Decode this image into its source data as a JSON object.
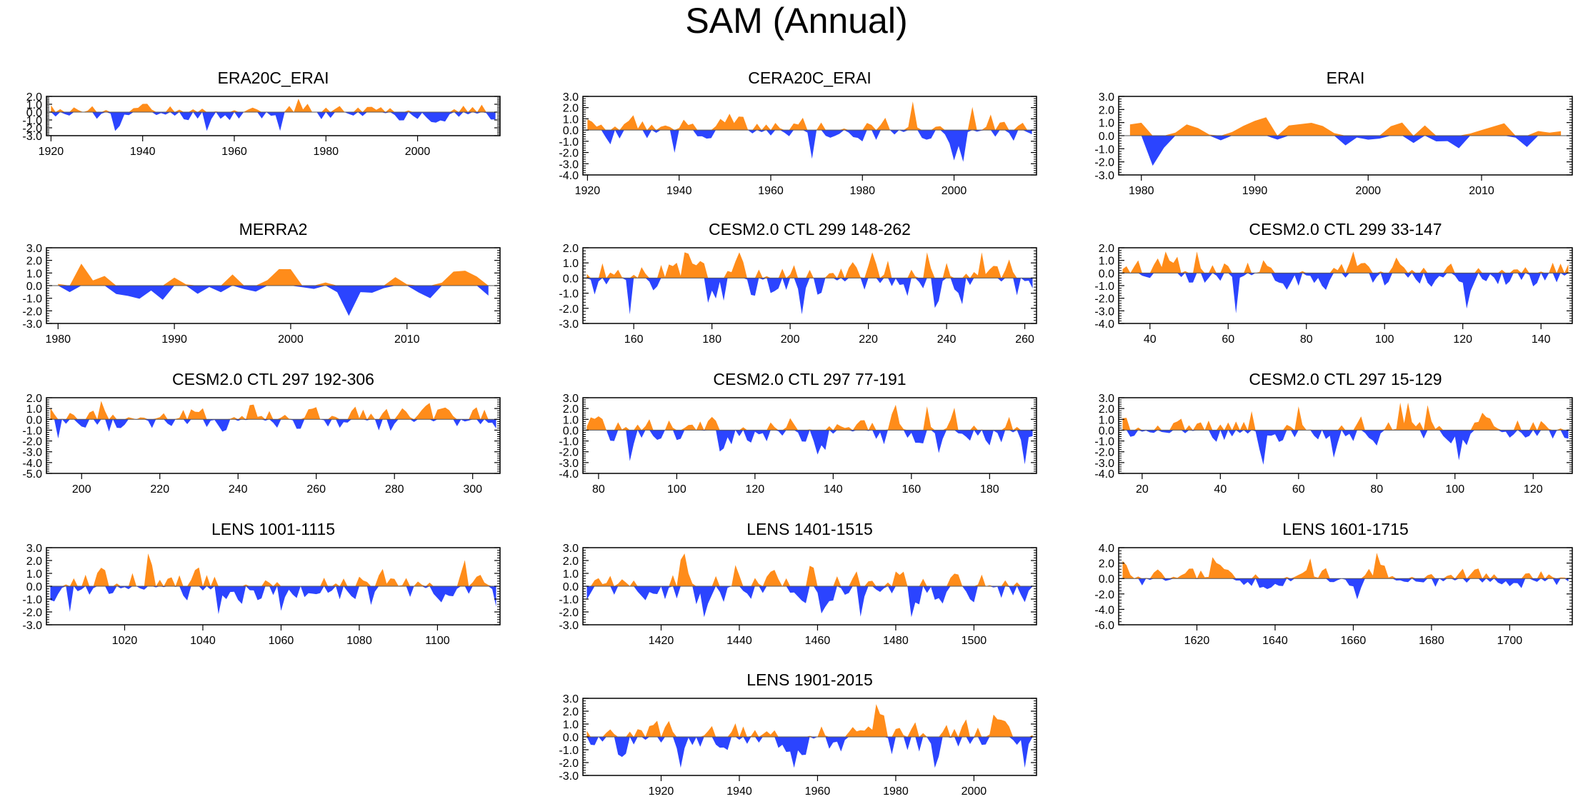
{
  "title": "SAM (Annual)",
  "colors": {
    "positive": "#ff8c1a",
    "negative": "#2b44ff",
    "axis": "#000000",
    "background": "#ffffff"
  },
  "chart_data": [
    {
      "type": "area",
      "title": "ERA20C_ERAI",
      "xlim": [
        1919,
        2018
      ],
      "ylim": [
        -3.0,
        2.0
      ],
      "yticks": [
        "2.0",
        "1.0",
        "0.0",
        "-1.0",
        "-2.0",
        "-3.0"
      ],
      "xticks": [
        1920,
        1940,
        1960,
        1980,
        2000
      ],
      "zero": 0.0,
      "seed": 11
    },
    {
      "type": "area",
      "title": "CERA20C_ERAI",
      "xlim": [
        1919,
        2018
      ],
      "ylim": [
        -4.0,
        3.0
      ],
      "yticks": [
        "3.0",
        "2.0",
        "1.0",
        "0.0",
        "-1.0",
        "-2.0",
        "-3.0",
        "-4.0"
      ],
      "xticks": [
        1920,
        1940,
        1960,
        1980,
        2000
      ],
      "zero": 0.0,
      "seed": 23
    },
    {
      "type": "area",
      "title": "ERAI",
      "xlim": [
        1978,
        2018
      ],
      "ylim": [
        -3.0,
        3.0
      ],
      "yticks": [
        "3.0",
        "2.0",
        "1.0",
        "0.0",
        "-1.0",
        "-2.0",
        "-3.0"
      ],
      "xticks": [
        1980,
        1990,
        2000,
        2010
      ],
      "zero": 0.0,
      "seed": 5
    },
    {
      "type": "area",
      "title": "MERRA2",
      "xlim": [
        1979,
        2018
      ],
      "ylim": [
        -3.0,
        3.0
      ],
      "yticks": [
        "3.0",
        "2.0",
        "1.0",
        "0.0",
        "-1.0",
        "-2.0",
        "-3.0"
      ],
      "xticks": [
        1980,
        1990,
        2000,
        2010
      ],
      "zero": 0.0,
      "seed": 7
    },
    {
      "type": "area",
      "title": "CESM2.0 CTL 299 148-262",
      "xlim": [
        147,
        263
      ],
      "ylim": [
        -3.0,
        2.0
      ],
      "yticks": [
        "2.0",
        "1.0",
        "0.0",
        "-1.0",
        "-2.0",
        "-3.0"
      ],
      "xticks": [
        160,
        180,
        200,
        220,
        240,
        260
      ],
      "zero": 0.0,
      "seed": 31
    },
    {
      "type": "area",
      "title": "CESM2.0 CTL 299 33-147",
      "xlim": [
        32,
        148
      ],
      "ylim": [
        -4.0,
        2.0
      ],
      "yticks": [
        "2.0",
        "1.0",
        "0.0",
        "-1.0",
        "-2.0",
        "-3.0",
        "-4.0"
      ],
      "xticks": [
        40,
        60,
        80,
        100,
        120,
        140
      ],
      "zero": 0.0,
      "seed": 37
    },
    {
      "type": "area",
      "title": "CESM2.0 CTL 297 192-306",
      "xlim": [
        191,
        307
      ],
      "ylim": [
        -5.0,
        2.0
      ],
      "yticks": [
        "2.0",
        "1.0",
        "0.0",
        "-1.0",
        "-2.0",
        "-3.0",
        "-4.0",
        "-5.0"
      ],
      "xticks": [
        200,
        220,
        240,
        260,
        280,
        300
      ],
      "zero": 0.0,
      "seed": 41
    },
    {
      "type": "area",
      "title": "CESM2.0 CTL 297 77-191",
      "xlim": [
        76,
        192
      ],
      "ylim": [
        -4.0,
        3.0
      ],
      "yticks": [
        "3.0",
        "2.0",
        "1.0",
        "0.0",
        "-1.0",
        "-2.0",
        "-3.0",
        "-4.0"
      ],
      "xticks": [
        80,
        100,
        120,
        140,
        160,
        180
      ],
      "zero": 0.0,
      "seed": 43
    },
    {
      "type": "area",
      "title": "CESM2.0 CTL 297 15-129",
      "xlim": [
        14,
        130
      ],
      "ylim": [
        -4.0,
        3.0
      ],
      "yticks": [
        "3.0",
        "2.0",
        "1.0",
        "0.0",
        "-1.0",
        "-2.0",
        "-3.0",
        "-4.0"
      ],
      "xticks": [
        20,
        40,
        60,
        80,
        100,
        120
      ],
      "zero": 0.0,
      "seed": 47
    },
    {
      "type": "area",
      "title": "LENS 1001-1115",
      "xlim": [
        1000,
        1116
      ],
      "ylim": [
        -3.0,
        3.0
      ],
      "yticks": [
        "3.0",
        "2.0",
        "1.0",
        "0.0",
        "-1.0",
        "-2.0",
        "-3.0"
      ],
      "xticks": [
        1020,
        1040,
        1060,
        1080,
        1100
      ],
      "zero": 0.0,
      "seed": 53
    },
    {
      "type": "area",
      "title": "LENS 1401-1515",
      "xlim": [
        1400,
        1516
      ],
      "ylim": [
        -3.0,
        3.0
      ],
      "yticks": [
        "3.0",
        "2.0",
        "1.0",
        "0.0",
        "-1.0",
        "-2.0",
        "-3.0"
      ],
      "xticks": [
        1420,
        1440,
        1460,
        1480,
        1500
      ],
      "zero": 0.0,
      "seed": 59
    },
    {
      "type": "area",
      "title": "LENS 1601-1715",
      "xlim": [
        1600,
        1716
      ],
      "ylim": [
        -6.0,
        4.0
      ],
      "yticks": [
        "4.0",
        "2.0",
        "0.0",
        "-2.0",
        "-4.0",
        "-6.0"
      ],
      "xticks": [
        1620,
        1640,
        1660,
        1680,
        1700
      ],
      "zero": 0.0,
      "seed": 61
    },
    {
      "type": "area",
      "title": "LENS 1901-2015",
      "xlim": [
        1900,
        2016
      ],
      "ylim": [
        -3.0,
        3.0
      ],
      "yticks": [
        "3.0",
        "2.0",
        "1.0",
        "0.0",
        "-1.0",
        "-2.0",
        "-3.0"
      ],
      "xticks": [
        1920,
        1940,
        1960,
        1980,
        2000
      ],
      "zero": 0.0,
      "seed": 67
    }
  ]
}
